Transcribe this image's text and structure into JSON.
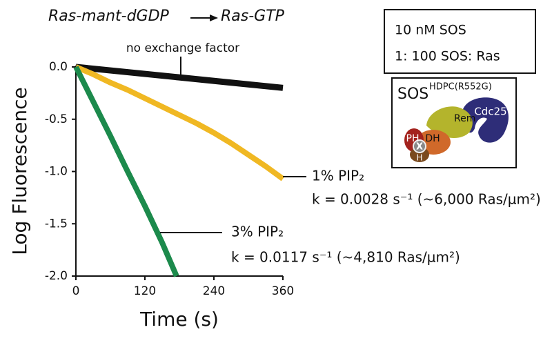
{
  "chart_data": {
    "type": "line",
    "title_left": "Ras-mant-dGDP",
    "title_right": "Ras-GTP",
    "xlabel": "Time (s)",
    "ylabel": "Log Fluorescence",
    "xlim": [
      0,
      360
    ],
    "ylim": [
      -2,
      0
    ],
    "xticks": [
      0,
      120,
      240,
      360
    ],
    "yticks": [
      {
        "value": 0,
        "label": "0.0"
      },
      -0.5,
      {
        "value": -1,
        "label": "-1.0"
      },
      -1.5,
      {
        "value": -2,
        "label": "-2.0"
      }
    ],
    "series": [
      {
        "name": "no exchange factor",
        "color": "#111111",
        "x": [
          0,
          90,
          180,
          270,
          360
        ],
        "values": [
          0,
          -0.05,
          -0.1,
          -0.15,
          -0.2
        ]
      },
      {
        "name": "1% PIP₂",
        "color": "#f0b823",
        "x": [
          0,
          30,
          60,
          90,
          120,
          150,
          180,
          210,
          240,
          270,
          300,
          330,
          360
        ],
        "values": [
          0,
          -0.07,
          -0.15,
          -0.22,
          -0.3,
          -0.38,
          -0.46,
          -0.54,
          -0.63,
          -0.73,
          -0.84,
          -0.95,
          -1.07
        ],
        "rate": "k = 0.0028 s⁻¹ (~6,000 Ras/µm²)"
      },
      {
        "name": "3% PIP₂",
        "color": "#1c8a4c",
        "x": [
          0,
          30,
          60,
          90,
          120,
          150,
          175
        ],
        "values": [
          0,
          -0.33,
          -0.66,
          -1.0,
          -1.33,
          -1.68,
          -2.0
        ],
        "rate": "k = 0.0117 s⁻¹ (~4,810 Ras/µm²)"
      }
    ]
  },
  "conditions": [
    "10 nM SOS",
    "1: 100 SOS: Ras"
  ],
  "diagram": {
    "title": "SOS",
    "superscript": "HDPC(R552G)",
    "domains": [
      "Rem",
      "Cdc25",
      "PH",
      "DH",
      "H",
      "X"
    ]
  }
}
